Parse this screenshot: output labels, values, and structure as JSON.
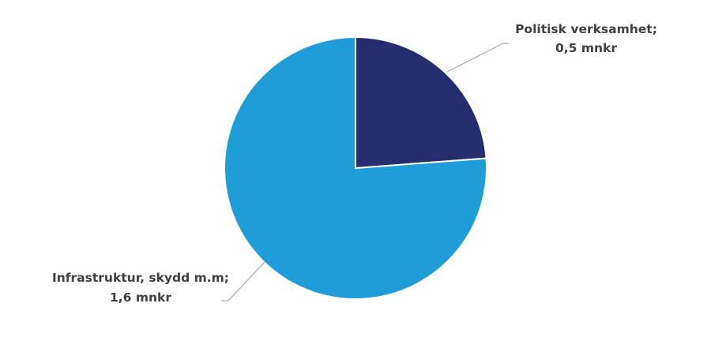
{
  "chart_data": {
    "type": "pie",
    "title": "",
    "start_angle": "top, clockwise",
    "slices": [
      {
        "name": "Politisk verksamhet;",
        "value": 0.5,
        "label_value": "0,5 mnkr",
        "color": "#252D6E"
      },
      {
        "name": "Infrastruktur, skydd m.m;",
        "value": 1.6,
        "label_value": "1,6 mnkr",
        "color": "#1F9DD9"
      }
    ],
    "unit": "mnkr",
    "leader_line_color": "#A6A6A6"
  }
}
